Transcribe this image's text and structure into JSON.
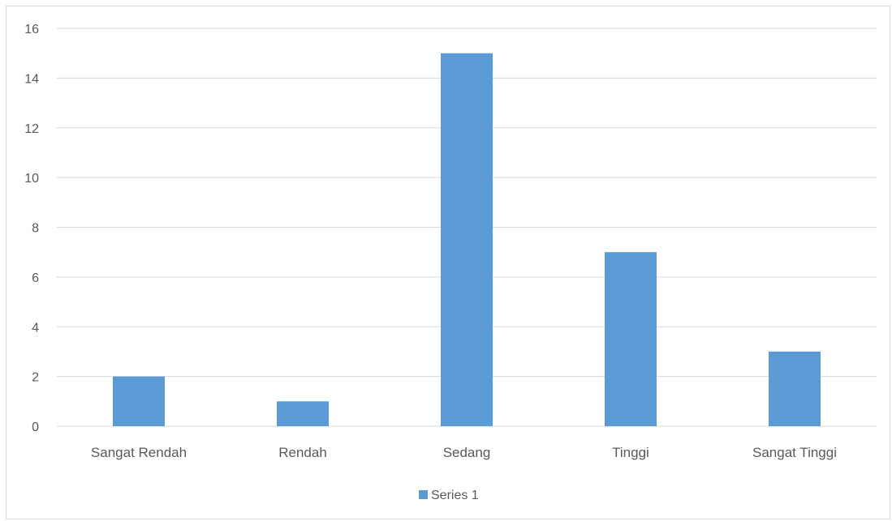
{
  "chart_data": {
    "type": "bar",
    "title": "",
    "xlabel": "",
    "ylabel": "",
    "categories": [
      "Sangat Rendah",
      "Rendah",
      "Sedang",
      "Tinggi",
      "Sangat Tinggi"
    ],
    "series": [
      {
        "name": "Series 1",
        "values": [
          2,
          1,
          15,
          7,
          3
        ],
        "color": "#5b9bd5"
      }
    ],
    "ylim": [
      0,
      16
    ],
    "yticks": [
      "0",
      "2",
      "4",
      "6",
      "8",
      "10",
      "12",
      "14",
      "16"
    ],
    "grid": true,
    "legend": "bottom-center",
    "colors": {
      "gridline": "#d9d9d9",
      "axis_text": "#595959"
    }
  }
}
